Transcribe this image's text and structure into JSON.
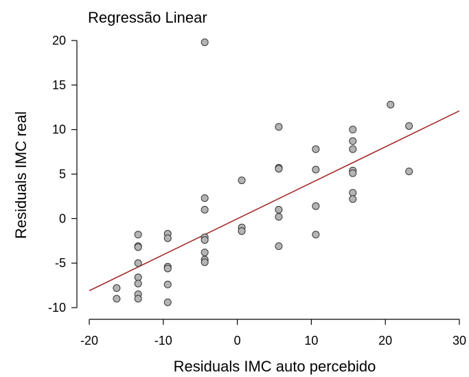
{
  "chart_data": {
    "type": "scatter",
    "title": "Regressão Linear",
    "xlabel": "Residuals IMC auto percebido",
    "ylabel": "Residuals IMC real",
    "xlim": [
      -20,
      30
    ],
    "ylim": [
      -10,
      20
    ],
    "xticks": [
      "-20",
      "-10",
      "0",
      "10",
      "20",
      "30"
    ],
    "yticks": [
      "-10",
      "-5",
      "0",
      "5",
      "10",
      "15",
      "20"
    ],
    "grid": false,
    "colors": {
      "point_fill": "#b4b4b4",
      "point_edge": "#333333",
      "line": "#a52a2a"
    },
    "points": [
      {
        "x": -16.3,
        "y": -7.8
      },
      {
        "x": -16.3,
        "y": -9.0
      },
      {
        "x": -13.4,
        "y": -1.8
      },
      {
        "x": -13.4,
        "y": -3.1
      },
      {
        "x": -13.4,
        "y": -3.2
      },
      {
        "x": -13.4,
        "y": -5.0
      },
      {
        "x": -13.4,
        "y": -6.6
      },
      {
        "x": -13.4,
        "y": -7.3
      },
      {
        "x": -13.4,
        "y": -8.5
      },
      {
        "x": -13.4,
        "y": -9.0
      },
      {
        "x": -9.4,
        "y": -1.7
      },
      {
        "x": -9.4,
        "y": -2.2
      },
      {
        "x": -9.4,
        "y": -5.4
      },
      {
        "x": -9.4,
        "y": -5.6
      },
      {
        "x": -9.4,
        "y": -7.4
      },
      {
        "x": -9.4,
        "y": -9.4
      },
      {
        "x": -4.4,
        "y": 19.8
      },
      {
        "x": -4.4,
        "y": 2.3
      },
      {
        "x": -4.4,
        "y": 1.0
      },
      {
        "x": -4.4,
        "y": -2.1
      },
      {
        "x": -4.4,
        "y": -2.4
      },
      {
        "x": -4.4,
        "y": -3.8
      },
      {
        "x": -4.4,
        "y": -4.6
      },
      {
        "x": -4.4,
        "y": -4.9
      },
      {
        "x": 0.6,
        "y": 4.3
      },
      {
        "x": 0.6,
        "y": -1.0
      },
      {
        "x": 0.6,
        "y": -1.4
      },
      {
        "x": 5.6,
        "y": 10.3
      },
      {
        "x": 5.6,
        "y": 5.7
      },
      {
        "x": 5.6,
        "y": 5.6
      },
      {
        "x": 5.6,
        "y": 1.0
      },
      {
        "x": 5.6,
        "y": 0.2
      },
      {
        "x": 5.6,
        "y": -3.1
      },
      {
        "x": 10.6,
        "y": 7.8
      },
      {
        "x": 10.6,
        "y": 5.5
      },
      {
        "x": 10.6,
        "y": 1.4
      },
      {
        "x": 10.6,
        "y": -1.8
      },
      {
        "x": 15.6,
        "y": 10.0
      },
      {
        "x": 15.6,
        "y": 8.7
      },
      {
        "x": 15.6,
        "y": 7.8
      },
      {
        "x": 15.6,
        "y": 5.4
      },
      {
        "x": 15.6,
        "y": 5.1
      },
      {
        "x": 15.6,
        "y": 2.9
      },
      {
        "x": 15.6,
        "y": 2.2
      },
      {
        "x": 20.7,
        "y": 12.8
      },
      {
        "x": 23.2,
        "y": 10.4
      },
      {
        "x": 23.2,
        "y": 5.3
      }
    ],
    "regression_line": {
      "x": [
        -20,
        30
      ],
      "y": [
        -8.1,
        12.1
      ]
    }
  }
}
